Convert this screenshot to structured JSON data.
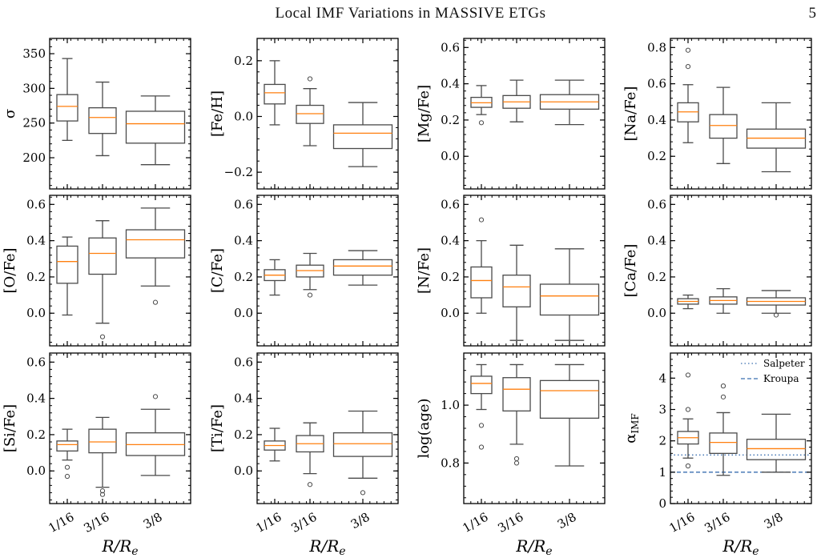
{
  "header": {
    "running_title": "Local IMF Variations in MASSIVE ETGs",
    "page_number": "5"
  },
  "shared": {
    "categories": [
      "1/16",
      "3/16",
      "3/8"
    ],
    "x_positions": [
      0.0625,
      0.1875,
      0.375
    ],
    "xlabel": "R/R",
    "xlabel_sub": "e",
    "colors": {
      "box": "#4a4a4a",
      "median": "#ff7f0e",
      "ref_line": "#3a6fb0"
    }
  },
  "chart_data": [
    {
      "type": "box",
      "ylabel": "σ",
      "ylim": [
        155,
        372
      ],
      "yticks": [
        200,
        250,
        300,
        350
      ],
      "ytick_labels": [
        "200",
        "250",
        "300",
        "350"
      ],
      "boxes": [
        {
          "category": "1/16",
          "whislo": 225,
          "q1": 253,
          "median": 274,
          "q3": 291,
          "whishi": 343,
          "fliers": []
        },
        {
          "category": "3/16",
          "whislo": 203,
          "q1": 235,
          "median": 258,
          "q3": 272,
          "whishi": 309,
          "fliers": []
        },
        {
          "category": "3/8",
          "whislo": 190,
          "q1": 221,
          "median": 249,
          "q3": 267,
          "whishi": 289,
          "fliers": []
        }
      ]
    },
    {
      "type": "box",
      "ylabel": "[Fe/H]",
      "ylim": [
        -0.26,
        0.28
      ],
      "yticks": [
        -0.2,
        0.0,
        0.2
      ],
      "ytick_labels": [
        "−0.2",
        "0.0",
        "0.2"
      ],
      "boxes": [
        {
          "category": "1/16",
          "whislo": -0.03,
          "q1": 0.045,
          "median": 0.085,
          "q3": 0.115,
          "whishi": 0.2,
          "fliers": []
        },
        {
          "category": "3/16",
          "whislo": -0.105,
          "q1": -0.025,
          "median": 0.01,
          "q3": 0.04,
          "whishi": 0.1,
          "fliers": [
            0.135
          ]
        },
        {
          "category": "3/8",
          "whislo": -0.18,
          "q1": -0.115,
          "median": -0.06,
          "q3": -0.03,
          "whishi": 0.05,
          "fliers": []
        }
      ]
    },
    {
      "type": "box",
      "ylabel": "[Mg/Fe]",
      "ylim": [
        -0.18,
        0.65
      ],
      "yticks": [
        0.0,
        0.2,
        0.4,
        0.6
      ],
      "ytick_labels": [
        "0.0",
        "0.2",
        "0.4",
        "0.6"
      ],
      "boxes": [
        {
          "category": "1/16",
          "whislo": 0.23,
          "q1": 0.27,
          "median": 0.295,
          "q3": 0.325,
          "whishi": 0.39,
          "fliers": [
            0.185
          ]
        },
        {
          "category": "3/16",
          "whislo": 0.19,
          "q1": 0.265,
          "median": 0.3,
          "q3": 0.335,
          "whishi": 0.42,
          "fliers": []
        },
        {
          "category": "3/8",
          "whislo": 0.175,
          "q1": 0.26,
          "median": 0.3,
          "q3": 0.34,
          "whishi": 0.42,
          "fliers": []
        }
      ]
    },
    {
      "type": "box",
      "ylabel": "[Na/Fe]",
      "ylim": [
        0.02,
        0.85
      ],
      "yticks": [
        0.2,
        0.4,
        0.6,
        0.8
      ],
      "ytick_labels": [
        "0.2",
        "0.4",
        "0.6",
        "0.8"
      ],
      "boxes": [
        {
          "category": "1/16",
          "whislo": 0.275,
          "q1": 0.39,
          "median": 0.445,
          "q3": 0.495,
          "whishi": 0.595,
          "fliers": [
            0.695,
            0.785
          ]
        },
        {
          "category": "3/16",
          "whislo": 0.16,
          "q1": 0.3,
          "median": 0.37,
          "q3": 0.43,
          "whishi": 0.58,
          "fliers": []
        },
        {
          "category": "3/8",
          "whislo": 0.115,
          "q1": 0.245,
          "median": 0.3,
          "q3": 0.35,
          "whishi": 0.495,
          "fliers": []
        }
      ]
    },
    {
      "type": "box",
      "ylabel": "[O/Fe]",
      "ylim": [
        -0.18,
        0.65
      ],
      "yticks": [
        0.0,
        0.2,
        0.4,
        0.6
      ],
      "ytick_labels": [
        "0.0",
        "0.2",
        "0.4",
        "0.6"
      ],
      "boxes": [
        {
          "category": "1/16",
          "whislo": -0.01,
          "q1": 0.165,
          "median": 0.285,
          "q3": 0.37,
          "whishi": 0.42,
          "fliers": []
        },
        {
          "category": "3/16",
          "whislo": -0.055,
          "q1": 0.215,
          "median": 0.33,
          "q3": 0.415,
          "whishi": 0.51,
          "fliers": [
            -0.13
          ]
        },
        {
          "category": "3/8",
          "whislo": 0.15,
          "q1": 0.305,
          "median": 0.405,
          "q3": 0.46,
          "whishi": 0.58,
          "fliers": [
            0.06
          ]
        }
      ]
    },
    {
      "type": "box",
      "ylabel": "[C/Fe]",
      "ylim": [
        -0.18,
        0.65
      ],
      "yticks": [
        0.0,
        0.2,
        0.4,
        0.6
      ],
      "ytick_labels": [
        "0.0",
        "0.2",
        "0.4",
        "0.6"
      ],
      "boxes": [
        {
          "category": "1/16",
          "whislo": 0.1,
          "q1": 0.18,
          "median": 0.21,
          "q3": 0.24,
          "whishi": 0.295,
          "fliers": []
        },
        {
          "category": "3/16",
          "whislo": 0.13,
          "q1": 0.2,
          "median": 0.235,
          "q3": 0.265,
          "whishi": 0.33,
          "fliers": [
            0.1
          ]
        },
        {
          "category": "3/8",
          "whislo": 0.155,
          "q1": 0.21,
          "median": 0.26,
          "q3": 0.295,
          "whishi": 0.345,
          "fliers": []
        }
      ]
    },
    {
      "type": "box",
      "ylabel": "[N/Fe]",
      "ylim": [
        -0.18,
        0.65
      ],
      "yticks": [
        0.0,
        0.2,
        0.4,
        0.6
      ],
      "ytick_labels": [
        "0.0",
        "0.2",
        "0.4",
        "0.6"
      ],
      "boxes": [
        {
          "category": "1/16",
          "whislo": 0.0,
          "q1": 0.085,
          "median": 0.18,
          "q3": 0.255,
          "whishi": 0.4,
          "fliers": [
            0.515
          ]
        },
        {
          "category": "3/16",
          "whislo": -0.15,
          "q1": 0.035,
          "median": 0.145,
          "q3": 0.21,
          "whishi": 0.375,
          "fliers": []
        },
        {
          "category": "3/8",
          "whislo": -0.15,
          "q1": -0.01,
          "median": 0.095,
          "q3": 0.16,
          "whishi": 0.355,
          "fliers": []
        }
      ]
    },
    {
      "type": "box",
      "ylabel": "[Ca/Fe]",
      "ylim": [
        -0.18,
        0.65
      ],
      "yticks": [
        0.0,
        0.2,
        0.4,
        0.6
      ],
      "ytick_labels": [
        "0.0",
        "0.2",
        "0.4",
        "0.6"
      ],
      "boxes": [
        {
          "category": "1/16",
          "whislo": 0.025,
          "q1": 0.05,
          "median": 0.065,
          "q3": 0.08,
          "whishi": 0.1,
          "fliers": []
        },
        {
          "category": "3/16",
          "whislo": 0.0,
          "q1": 0.05,
          "median": 0.07,
          "q3": 0.09,
          "whishi": 0.135,
          "fliers": []
        },
        {
          "category": "3/8",
          "whislo": 0.0,
          "q1": 0.045,
          "median": 0.065,
          "q3": 0.085,
          "whishi": 0.125,
          "fliers": [
            -0.01
          ]
        }
      ]
    },
    {
      "type": "box",
      "ylabel": "[Si/Fe]",
      "ylim": [
        -0.18,
        0.65
      ],
      "yticks": [
        0.0,
        0.2,
        0.4,
        0.6
      ],
      "ytick_labels": [
        "0.0",
        "0.2",
        "0.4",
        "0.6"
      ],
      "boxes": [
        {
          "category": "1/16",
          "whislo": 0.06,
          "q1": 0.11,
          "median": 0.145,
          "q3": 0.165,
          "whishi": 0.23,
          "fliers": [
            0.02,
            -0.03
          ]
        },
        {
          "category": "3/16",
          "whislo": -0.09,
          "q1": 0.1,
          "median": 0.16,
          "q3": 0.23,
          "whishi": 0.295,
          "fliers": [
            -0.11,
            -0.13
          ]
        },
        {
          "category": "3/8",
          "whislo": -0.025,
          "q1": 0.085,
          "median": 0.145,
          "q3": 0.21,
          "whishi": 0.34,
          "fliers": [
            0.41
          ]
        }
      ]
    },
    {
      "type": "box",
      "ylabel": "[Ti/Fe]",
      "ylim": [
        -0.18,
        0.65
      ],
      "yticks": [
        0.0,
        0.2,
        0.4,
        0.6
      ],
      "ytick_labels": [
        "0.0",
        "0.2",
        "0.4",
        "0.6"
      ],
      "boxes": [
        {
          "category": "1/16",
          "whislo": 0.055,
          "q1": 0.115,
          "median": 0.14,
          "q3": 0.165,
          "whishi": 0.235,
          "fliers": []
        },
        {
          "category": "3/16",
          "whislo": -0.015,
          "q1": 0.105,
          "median": 0.15,
          "q3": 0.195,
          "whishi": 0.265,
          "fliers": [
            -0.075
          ]
        },
        {
          "category": "3/8",
          "whislo": -0.04,
          "q1": 0.08,
          "median": 0.15,
          "q3": 0.21,
          "whishi": 0.33,
          "fliers": [
            -0.12
          ]
        }
      ]
    },
    {
      "type": "box",
      "ylabel": "log(age)",
      "ylim": [
        0.66,
        1.18
      ],
      "yticks": [
        0.8,
        1.0
      ],
      "ytick_labels": [
        "0.8",
        "1.0"
      ],
      "boxes": [
        {
          "category": "1/16",
          "whislo": 0.985,
          "q1": 1.04,
          "median": 1.075,
          "q3": 1.1,
          "whishi": 1.14,
          "fliers": [
            0.93,
            0.855
          ]
        },
        {
          "category": "3/16",
          "whislo": 0.865,
          "q1": 0.98,
          "median": 1.055,
          "q3": 1.095,
          "whishi": 1.14,
          "fliers": [
            0.815,
            0.8
          ]
        },
        {
          "category": "3/8",
          "whislo": 0.79,
          "q1": 0.955,
          "median": 1.05,
          "q3": 1.085,
          "whishi": 1.14,
          "fliers": []
        }
      ]
    },
    {
      "type": "box",
      "ylabel": "α",
      "ylabel_sub": "IMF",
      "ylim": [
        0,
        4.8
      ],
      "yticks": [
        0,
        1,
        2,
        3,
        4
      ],
      "ytick_labels": [
        "0",
        "1",
        "2",
        "3",
        "4"
      ],
      "boxes": [
        {
          "category": "1/16",
          "whislo": 1.45,
          "q1": 1.9,
          "median": 2.1,
          "q3": 2.3,
          "whishi": 2.7,
          "fliers": [
            3.0,
            4.1,
            1.2
          ]
        },
        {
          "category": "3/16",
          "whislo": 0.9,
          "q1": 1.6,
          "median": 1.95,
          "q3": 2.25,
          "whishi": 2.9,
          "fliers": [
            3.4,
            3.75
          ]
        },
        {
          "category": "3/8",
          "whislo": 1.0,
          "q1": 1.4,
          "median": 1.75,
          "q3": 2.05,
          "whishi": 2.85,
          "fliers": []
        }
      ],
      "ref_lines": [
        {
          "name": "Salpeter",
          "y": 1.55,
          "style": "dotted"
        },
        {
          "name": "Kroupa",
          "y": 1.0,
          "style": "dashed"
        }
      ],
      "legend": "top-right"
    }
  ]
}
